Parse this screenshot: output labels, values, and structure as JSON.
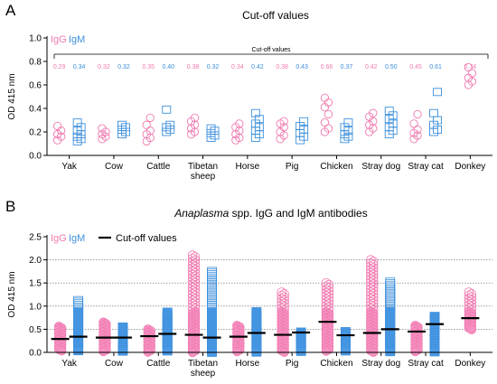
{
  "colors": {
    "igg": "#f07ab0",
    "igm": "#3d8fdb",
    "igg_fill": "#f590c0",
    "igm_fill": "#4a9ae6",
    "cutoff": "#000000"
  },
  "panelA": {
    "letter": "A",
    "title": "Cut-off values",
    "legend": {
      "igg": "IgG",
      "igm": "IgM"
    },
    "bracket_label": "Cut-off values",
    "ylabel": "OD 415 nm"
  },
  "panelB": {
    "letter": "B",
    "title_italic": "Anaplasma",
    "title_rest": " spp. IgG and IgM antibodies",
    "legend": {
      "igg": "IgG",
      "igm": "IgM",
      "cutoff": "Cut-off values"
    },
    "ylabel": "OD 415 nm"
  },
  "chart_data": [
    {
      "type": "scatter",
      "title": "Cut-off values",
      "ylabel": "OD 415 nm",
      "ylim": [
        0,
        1.0
      ],
      "yticks": [
        "0.0",
        "0.2",
        "0.4",
        "0.6",
        "0.8",
        "1.0"
      ],
      "categories": [
        "Yak",
        "Cow",
        "Cattle",
        "Tibetan sheep",
        "Horse",
        "Pig",
        "Chicken",
        "Stray dog",
        "Stray cat",
        "Donkey"
      ],
      "cutoff_labels": [
        {
          "igg": "0.29",
          "igm": "0.34"
        },
        {
          "igg": "0.32",
          "igm": "0.32"
        },
        {
          "igg": "0.35",
          "igm": "0.40"
        },
        {
          "igg": "0.38",
          "igm": "0.32"
        },
        {
          "igg": "0.34",
          "igm": "0.42"
        },
        {
          "igg": "0.38",
          "igm": "0.43"
        },
        {
          "igg": "0.66",
          "igm": "0.37"
        },
        {
          "igg": "0.42",
          "igm": "0.50"
        },
        {
          "igg": "0.45",
          "igm": "0.61"
        },
        {
          "igg": "0.74",
          "igm": ""
        }
      ],
      "series": [
        {
          "name": "IgG",
          "values": [
            [
              0.13,
              0.16,
              0.18,
              0.21,
              0.25
            ],
            [
              0.14,
              0.16,
              0.18,
              0.2,
              0.23
            ],
            [
              0.12,
              0.15,
              0.18,
              0.21,
              0.26,
              0.32
            ],
            [
              0.18,
              0.2,
              0.23,
              0.26,
              0.29,
              0.32
            ],
            [
              0.13,
              0.15,
              0.18,
              0.21,
              0.24,
              0.27
            ],
            [
              0.14,
              0.17,
              0.2,
              0.24,
              0.27,
              0.29
            ],
            [
              0.2,
              0.23,
              0.28,
              0.35,
              0.41,
              0.45,
              0.49
            ],
            [
              0.2,
              0.23,
              0.26,
              0.29,
              0.33,
              0.36
            ],
            [
              0.14,
              0.17,
              0.19,
              0.22,
              0.27,
              0.35
            ],
            [
              0.6,
              0.63,
              0.66,
              0.7,
              0.75
            ]
          ]
        },
        {
          "name": "IgM",
          "values": [
            [
              0.12,
              0.14,
              0.16,
              0.18,
              0.21,
              0.24,
              0.28
            ],
            [
              0.18,
              0.2,
              0.22,
              0.24,
              0.26
            ],
            [
              0.2,
              0.22,
              0.24,
              0.26,
              0.39
            ],
            [
              0.15,
              0.17,
              0.19,
              0.21,
              0.23
            ],
            [
              0.15,
              0.18,
              0.21,
              0.24,
              0.27,
              0.31,
              0.36
            ],
            [
              0.13,
              0.16,
              0.19,
              0.22,
              0.25,
              0.29
            ],
            [
              0.14,
              0.16,
              0.18,
              0.21,
              0.24,
              0.28
            ],
            [
              0.18,
              0.21,
              0.24,
              0.27,
              0.31,
              0.34,
              0.38
            ],
            [
              0.2,
              0.22,
              0.26,
              0.3,
              0.36,
              0.54
            ],
            []
          ]
        }
      ]
    },
    {
      "type": "scatter",
      "title": "Anaplasma spp. IgG and IgM antibodies",
      "ylabel": "OD 415 nm",
      "ylim": [
        0,
        2.5
      ],
      "yticks": [
        "0.0",
        "0.5",
        "1.0",
        "1.5",
        "2.0",
        "2.5"
      ],
      "grid": "dotted horizontal",
      "categories": [
        "Yak",
        "Cow",
        "Cattle",
        "Tibetan sheep",
        "Horse",
        "Pig",
        "Chicken",
        "Stray dog",
        "Stray cat",
        "Donkey"
      ],
      "series": [
        {
          "name": "IgG",
          "ranges": [
            [
              0.0,
              0.56
            ],
            [
              0.0,
              0.65
            ],
            [
              0.0,
              0.5
            ],
            [
              0.0,
              2.1
            ],
            [
              0.0,
              0.58
            ],
            [
              0.0,
              1.3
            ],
            [
              0.0,
              1.5
            ],
            [
              0.0,
              2.0
            ],
            [
              0.0,
              0.58
            ],
            [
              0.48,
              1.3
            ]
          ],
          "cutoffs": [
            0.29,
            0.32,
            0.35,
            0.38,
            0.34,
            0.38,
            0.66,
            0.42,
            0.45,
            0.74
          ]
        },
        {
          "name": "IgM",
          "ranges": [
            [
              0.0,
              1.12
            ],
            [
              0.0,
              0.55
            ],
            [
              0.0,
              0.87
            ],
            [
              0.0,
              1.75
            ],
            [
              0.0,
              0.88
            ],
            [
              0.0,
              0.44
            ],
            [
              0.0,
              0.45
            ],
            [
              0.0,
              1.52
            ],
            [
              0.0,
              0.78
            ],
            null
          ],
          "cutoffs": [
            0.34,
            0.32,
            0.4,
            0.32,
            0.42,
            0.43,
            0.37,
            0.5,
            0.61,
            null
          ]
        }
      ]
    }
  ]
}
